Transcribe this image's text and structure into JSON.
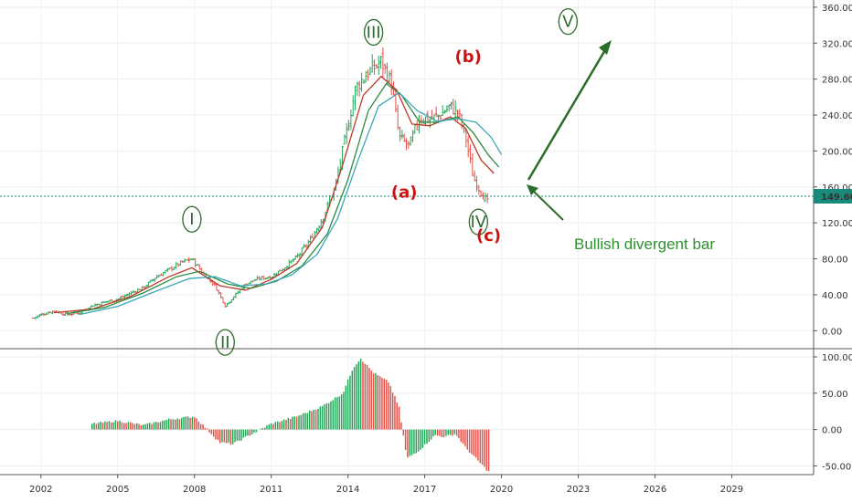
{
  "chart_data": {
    "type": "candlestick",
    "x_tick_labels": [
      "2002",
      "2005",
      "2008",
      "2011",
      "2014",
      "2017",
      "2020",
      "2023",
      "2026",
      "2029"
    ],
    "x_range": [
      2000.4,
      2032.2
    ],
    "price_axis": {
      "ticks": [
        "360.00",
        "320.00",
        "280.00",
        "240.00",
        "200.00",
        "160.00",
        "120.00",
        "80.00",
        "40.00",
        "0.00"
      ],
      "ylim": [
        -20,
        368
      ]
    },
    "last_price": {
      "value": 149.6,
      "label": "149.60",
      "color": "#1a8a7a"
    },
    "osc_axis": {
      "ticks": [
        "100.00",
        "50.00",
        "0.00",
        "-50.00"
      ],
      "ylim": [
        -62,
        110
      ]
    },
    "price_series": [
      {
        "t": 2001.7,
        "v": 14
      },
      {
        "t": 2002.0,
        "v": 18
      },
      {
        "t": 2002.5,
        "v": 22
      },
      {
        "t": 2003.0,
        "v": 18
      },
      {
        "t": 2003.5,
        "v": 20
      },
      {
        "t": 2004.0,
        "v": 28
      },
      {
        "t": 2004.5,
        "v": 32
      },
      {
        "t": 2005.0,
        "v": 35
      },
      {
        "t": 2005.5,
        "v": 42
      },
      {
        "t": 2006.0,
        "v": 48
      },
      {
        "t": 2006.5,
        "v": 60
      },
      {
        "t": 2007.0,
        "v": 68
      },
      {
        "t": 2007.5,
        "v": 76
      },
      {
        "t": 2007.9,
        "v": 80
      },
      {
        "t": 2008.3,
        "v": 65
      },
      {
        "t": 2008.8,
        "v": 50
      },
      {
        "t": 2009.2,
        "v": 28
      },
      {
        "t": 2009.6,
        "v": 40
      },
      {
        "t": 2010.0,
        "v": 52
      },
      {
        "t": 2010.5,
        "v": 58
      },
      {
        "t": 2011.0,
        "v": 60
      },
      {
        "t": 2011.5,
        "v": 70
      },
      {
        "t": 2012.0,
        "v": 82
      },
      {
        "t": 2012.5,
        "v": 100
      },
      {
        "t": 2013.0,
        "v": 125
      },
      {
        "t": 2013.5,
        "v": 160
      },
      {
        "t": 2013.9,
        "v": 215
      },
      {
        "t": 2014.3,
        "v": 270
      },
      {
        "t": 2014.7,
        "v": 285
      },
      {
        "t": 2015.0,
        "v": 292
      },
      {
        "t": 2015.3,
        "v": 300
      },
      {
        "t": 2015.7,
        "v": 275
      },
      {
        "t": 2016.0,
        "v": 215
      },
      {
        "t": 2016.4,
        "v": 205
      },
      {
        "t": 2016.8,
        "v": 238
      },
      {
        "t": 2017.2,
        "v": 235
      },
      {
        "t": 2017.6,
        "v": 240
      },
      {
        "t": 2018.0,
        "v": 250
      },
      {
        "t": 2018.3,
        "v": 242
      },
      {
        "t": 2018.6,
        "v": 215
      },
      {
        "t": 2018.9,
        "v": 170
      },
      {
        "t": 2019.2,
        "v": 155
      },
      {
        "t": 2019.5,
        "v": 140
      }
    ],
    "moving_averages": [
      {
        "color": "#c0392b",
        "points": [
          {
            "t": 2002.5,
            "v": 20
          },
          {
            "t": 2004.0,
            "v": 24
          },
          {
            "t": 2005.5,
            "v": 38
          },
          {
            "t": 2007.0,
            "v": 60
          },
          {
            "t": 2007.9,
            "v": 70
          },
          {
            "t": 2009.0,
            "v": 50
          },
          {
            "t": 2010.0,
            "v": 45
          },
          {
            "t": 2011.0,
            "v": 57
          },
          {
            "t": 2012.0,
            "v": 75
          },
          {
            "t": 2013.0,
            "v": 115
          },
          {
            "t": 2013.8,
            "v": 185
          },
          {
            "t": 2014.6,
            "v": 262
          },
          {
            "t": 2015.3,
            "v": 283
          },
          {
            "t": 2015.9,
            "v": 268
          },
          {
            "t": 2016.5,
            "v": 230
          },
          {
            "t": 2017.2,
            "v": 228
          },
          {
            "t": 2018.0,
            "v": 238
          },
          {
            "t": 2018.6,
            "v": 225
          },
          {
            "t": 2019.2,
            "v": 190
          },
          {
            "t": 2019.7,
            "v": 175
          }
        ]
      },
      {
        "color": "#2e8b3e",
        "points": [
          {
            "t": 2003.0,
            "v": 19
          },
          {
            "t": 2004.5,
            "v": 26
          },
          {
            "t": 2006.0,
            "v": 42
          },
          {
            "t": 2007.3,
            "v": 60
          },
          {
            "t": 2008.2,
            "v": 66
          },
          {
            "t": 2009.3,
            "v": 52
          },
          {
            "t": 2010.2,
            "v": 47
          },
          {
            "t": 2011.2,
            "v": 55
          },
          {
            "t": 2012.2,
            "v": 72
          },
          {
            "t": 2013.2,
            "v": 108
          },
          {
            "t": 2014.0,
            "v": 168
          },
          {
            "t": 2014.8,
            "v": 245
          },
          {
            "t": 2015.5,
            "v": 275
          },
          {
            "t": 2016.1,
            "v": 262
          },
          {
            "t": 2016.8,
            "v": 232
          },
          {
            "t": 2017.5,
            "v": 232
          },
          {
            "t": 2018.3,
            "v": 238
          },
          {
            "t": 2018.9,
            "v": 220
          },
          {
            "t": 2019.5,
            "v": 195
          },
          {
            "t": 2019.9,
            "v": 182
          }
        ]
      },
      {
        "color": "#3aa7b8",
        "points": [
          {
            "t": 2003.5,
            "v": 18
          },
          {
            "t": 2005.0,
            "v": 27
          },
          {
            "t": 2006.5,
            "v": 44
          },
          {
            "t": 2007.8,
            "v": 58
          },
          {
            "t": 2008.8,
            "v": 60
          },
          {
            "t": 2009.8,
            "v": 50
          },
          {
            "t": 2010.8,
            "v": 52
          },
          {
            "t": 2011.8,
            "v": 62
          },
          {
            "t": 2012.8,
            "v": 85
          },
          {
            "t": 2013.6,
            "v": 125
          },
          {
            "t": 2014.4,
            "v": 190
          },
          {
            "t": 2015.2,
            "v": 250
          },
          {
            "t": 2016.0,
            "v": 265
          },
          {
            "t": 2016.7,
            "v": 245
          },
          {
            "t": 2017.5,
            "v": 233
          },
          {
            "t": 2018.3,
            "v": 236
          },
          {
            "t": 2019.0,
            "v": 232
          },
          {
            "t": 2019.6,
            "v": 215
          },
          {
            "t": 2020.0,
            "v": 196
          }
        ]
      }
    ],
    "oscillator": [
      {
        "t": 2004.0,
        "v": 8
      },
      {
        "t": 2005.0,
        "v": 12
      },
      {
        "t": 2006.0,
        "v": 6
      },
      {
        "t": 2007.0,
        "v": 14
      },
      {
        "t": 2008.0,
        "v": 18
      },
      {
        "t": 2009.0,
        "v": -18
      },
      {
        "t": 2009.5,
        "v": -20
      },
      {
        "t": 2010.3,
        "v": -5
      },
      {
        "t": 2011.0,
        "v": 8
      },
      {
        "t": 2012.0,
        "v": 18
      },
      {
        "t": 2013.0,
        "v": 32
      },
      {
        "t": 2013.8,
        "v": 50
      },
      {
        "t": 2014.2,
        "v": 85
      },
      {
        "t": 2014.5,
        "v": 98
      },
      {
        "t": 2015.0,
        "v": 78
      },
      {
        "t": 2015.6,
        "v": 65
      },
      {
        "t": 2016.0,
        "v": 30
      },
      {
        "t": 2016.3,
        "v": -40
      },
      {
        "t": 2016.8,
        "v": -28
      },
      {
        "t": 2017.4,
        "v": -8
      },
      {
        "t": 2017.8,
        "v": -10
      },
      {
        "t": 2018.2,
        "v": -6
      },
      {
        "t": 2018.6,
        "v": -25
      },
      {
        "t": 2019.0,
        "v": -40
      },
      {
        "t": 2019.5,
        "v": -58
      }
    ],
    "wave_labels": [
      {
        "text": "I",
        "t": 2007.9,
        "v": 124,
        "color": "#2e6b2e",
        "circled": true
      },
      {
        "text": "II",
        "t": 2009.2,
        "v": -13,
        "color": "#2e6b2e",
        "circled": true
      },
      {
        "text": "III",
        "t": 2015.0,
        "v": 332,
        "color": "#2e6b2e",
        "circled": true
      },
      {
        "text": "IV",
        "t": 2019.1,
        "v": 121,
        "color": "#2e6b2e",
        "circled": true
      },
      {
        "text": "V",
        "t": 2022.6,
        "v": 344,
        "color": "#2e6b2e",
        "circled": true
      },
      {
        "text": "(a)",
        "t": 2016.2,
        "v": 154,
        "color": "#cc1111",
        "circled": false
      },
      {
        "text": "(b)",
        "t": 2018.7,
        "v": 305,
        "color": "#cc1111",
        "circled": false
      },
      {
        "text": "(c)",
        "t": 2019.5,
        "v": 106,
        "color": "#cc1111",
        "circled": false
      }
    ],
    "annotation": {
      "text": "Bullish divergent bar",
      "color": "#2f8f2f"
    }
  }
}
